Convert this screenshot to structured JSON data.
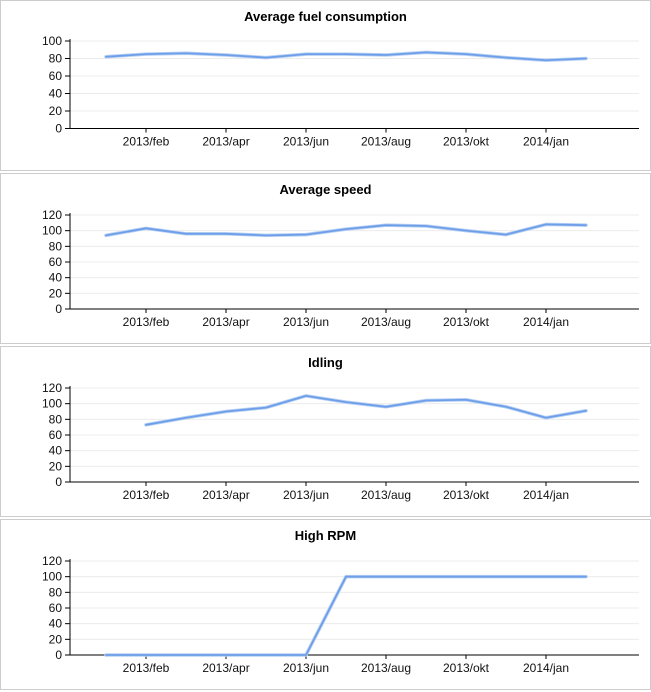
{
  "style": {
    "line_color": "#6d9eea",
    "line_halo_color": "#b7d0f2",
    "grid_color": "#ececec",
    "axis_color": "#000000",
    "panel_border_color": "#cccccc",
    "background": "#ffffff",
    "title_color": "#000000",
    "label_color": "#111111"
  },
  "chart_data": [
    {
      "type": "line",
      "title": "Average fuel consumption",
      "x_tick_labels": [
        "2013/feb",
        "2013/apr",
        "2013/jun",
        "2013/aug",
        "2013/okt",
        "2014/jan"
      ],
      "x_tick_indices": [
        1,
        3,
        5,
        7,
        9,
        11
      ],
      "num_points": 13,
      "values": [
        82,
        85,
        86,
        84,
        81,
        85,
        85,
        84,
        87,
        85,
        81,
        78,
        80
      ],
      "ylim": [
        0,
        100
      ],
      "y_ticks": [
        0,
        20,
        40,
        60,
        80,
        100
      ],
      "grid": true,
      "legend": "none"
    },
    {
      "type": "line",
      "title": "Average speed",
      "x_tick_labels": [
        "2013/feb",
        "2013/apr",
        "2013/jun",
        "2013/aug",
        "2013/okt",
        "2014/jan"
      ],
      "x_tick_indices": [
        1,
        3,
        5,
        7,
        9,
        11
      ],
      "num_points": 13,
      "values": [
        94,
        103,
        96,
        96,
        94,
        95,
        102,
        107,
        106,
        100,
        95,
        108,
        107
      ],
      "ylim": [
        0,
        120
      ],
      "y_ticks": [
        0,
        20,
        40,
        60,
        80,
        100,
        120
      ],
      "grid": true,
      "legend": "none"
    },
    {
      "type": "line",
      "title": "Idling",
      "x_tick_labels": [
        "2013/feb",
        "2013/apr",
        "2013/jun",
        "2013/aug",
        "2013/okt",
        "2014/jan"
      ],
      "x_tick_indices": [
        1,
        3,
        5,
        7,
        9,
        11
      ],
      "num_points": 13,
      "values": [
        null,
        73,
        82,
        90,
        95,
        110,
        102,
        96,
        104,
        105,
        96,
        82,
        91
      ],
      "ylim": [
        0,
        120
      ],
      "y_ticks": [
        0,
        20,
        40,
        60,
        80,
        100,
        120
      ],
      "grid": true,
      "legend": "none"
    },
    {
      "type": "line",
      "title": "High RPM",
      "x_tick_labels": [
        "2013/feb",
        "2013/apr",
        "2013/jun",
        "2013/aug",
        "2013/okt",
        "2014/jan"
      ],
      "x_tick_indices": [
        1,
        3,
        5,
        7,
        9,
        11
      ],
      "num_points": 13,
      "values": [
        0,
        0,
        0,
        0,
        0,
        0,
        100,
        100,
        100,
        100,
        100,
        100,
        100
      ],
      "ylim": [
        0,
        120
      ],
      "y_ticks": [
        0,
        20,
        40,
        60,
        80,
        100,
        120
      ],
      "grid": true,
      "legend": "none"
    }
  ]
}
